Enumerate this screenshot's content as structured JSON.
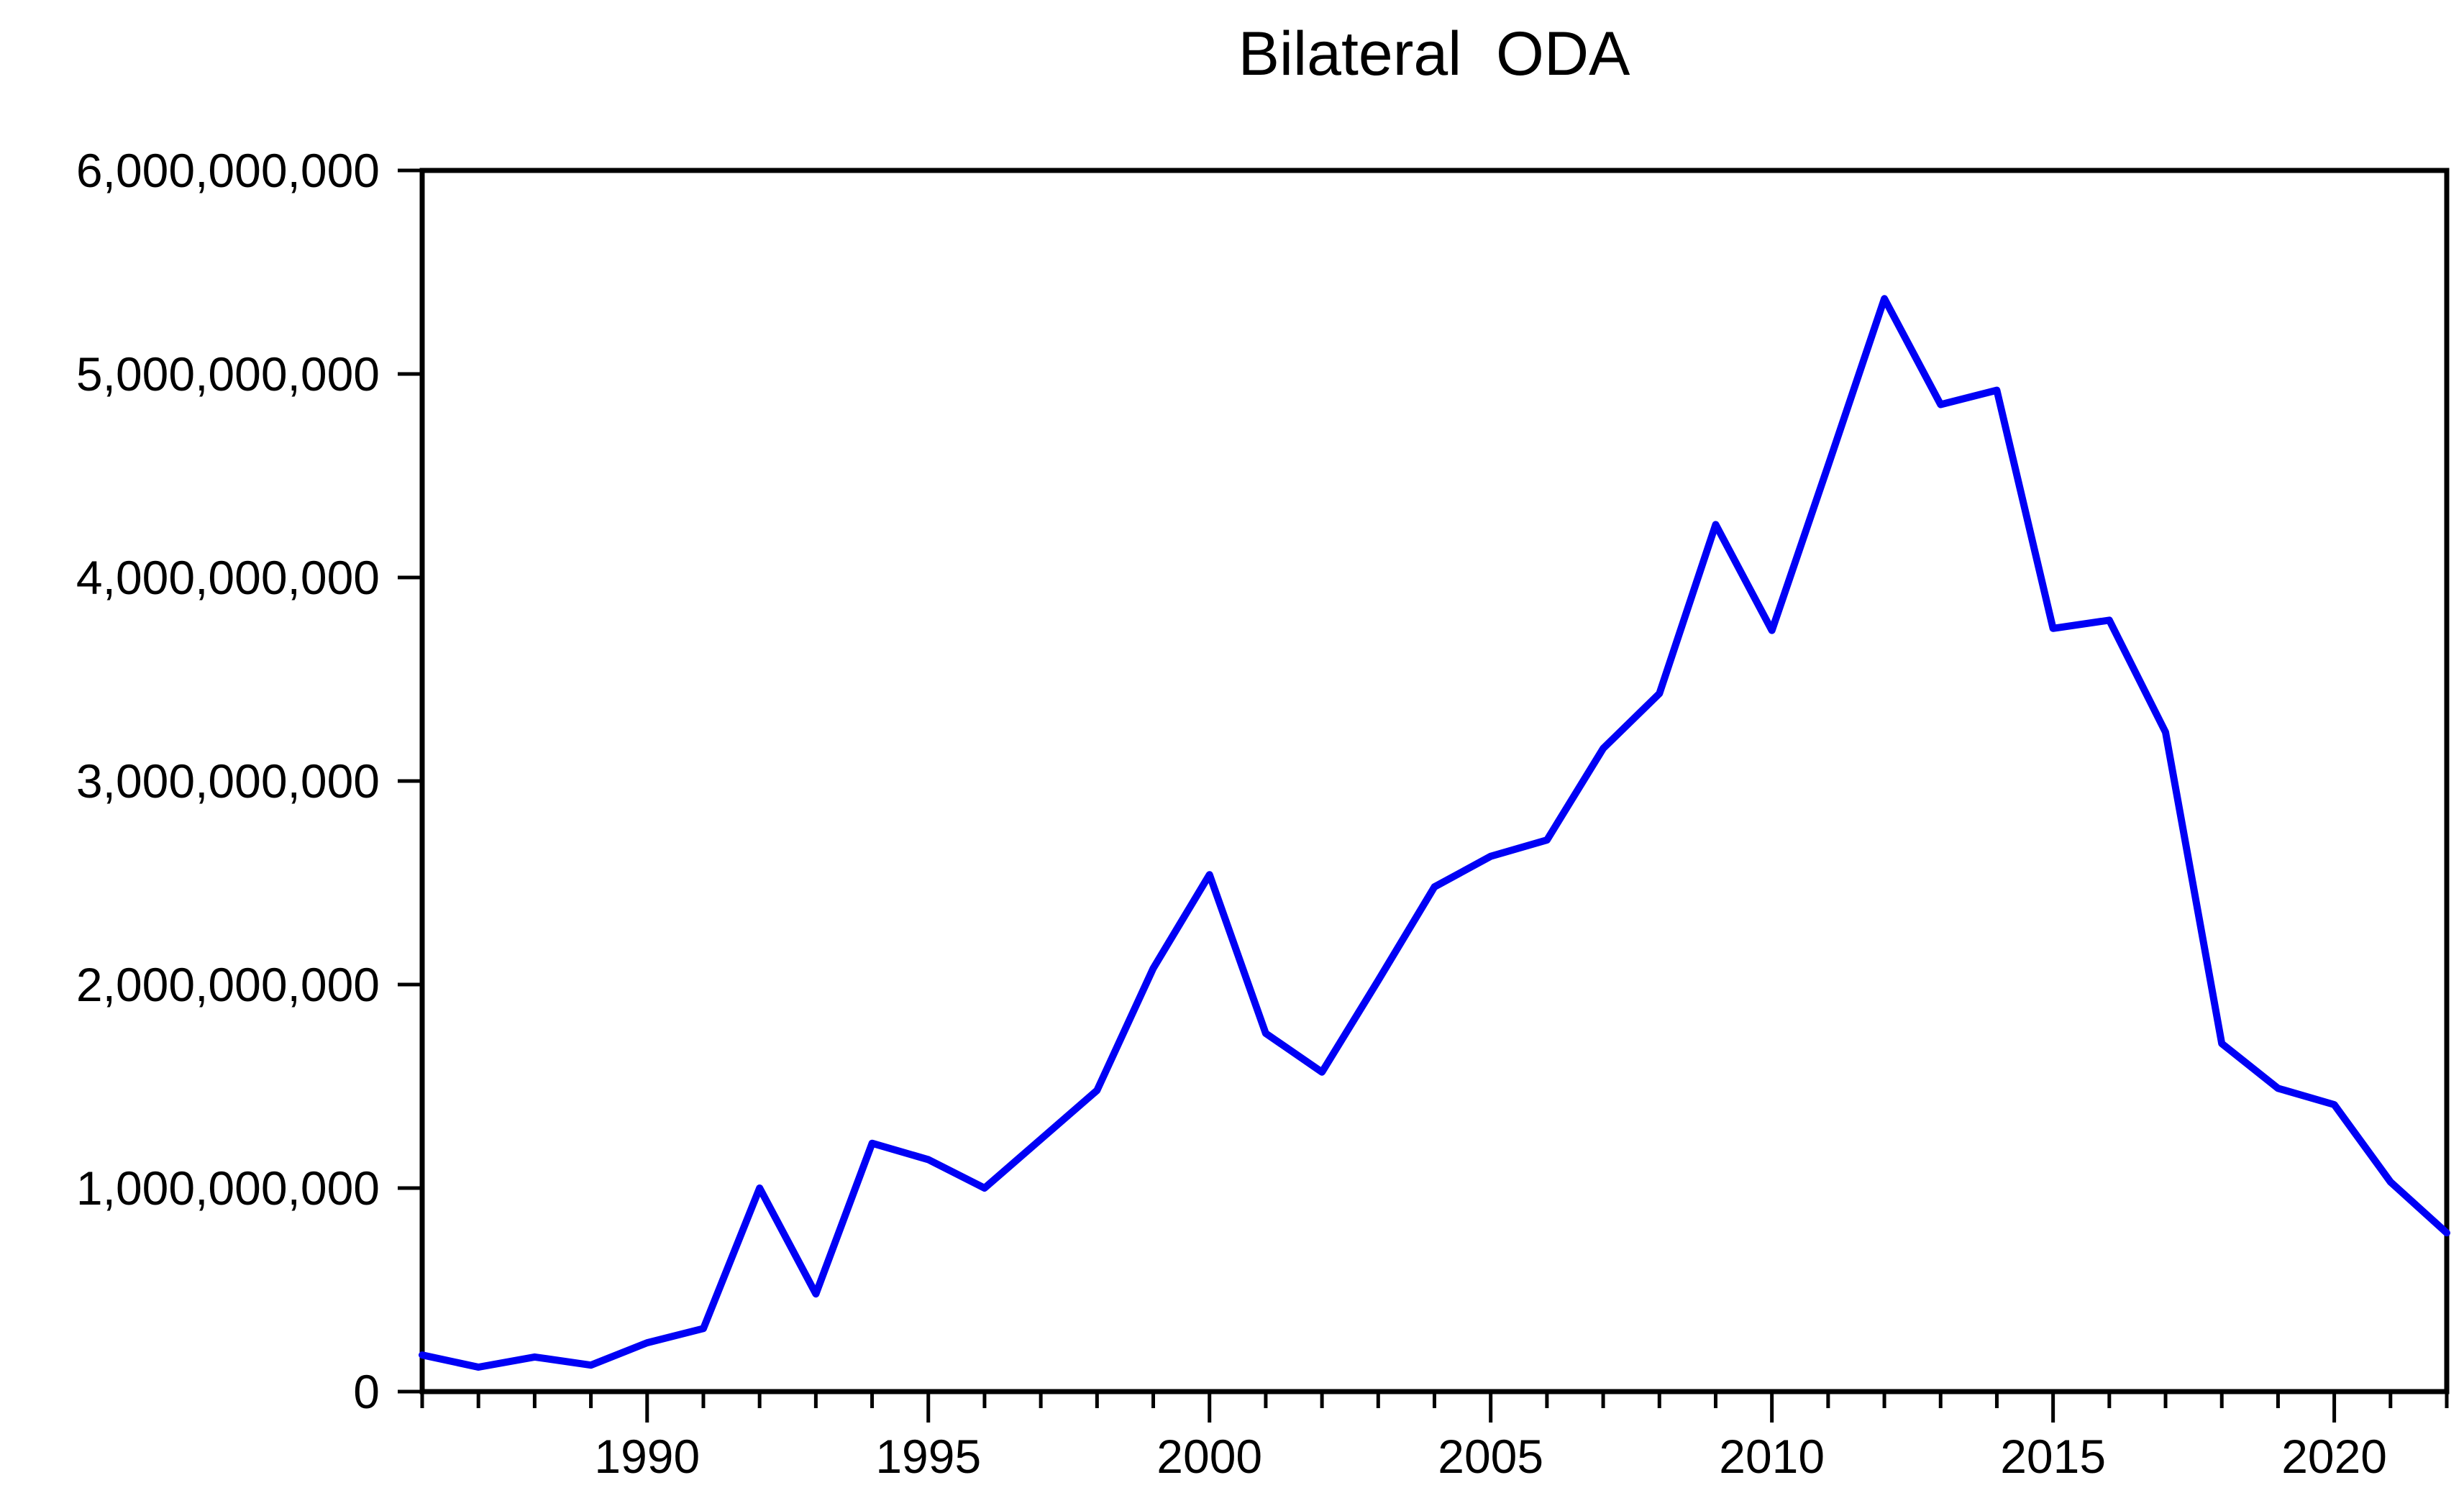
{
  "title": "Bilateral  ODA",
  "colors": {
    "line": "#0000f5",
    "axis": "#000000",
    "background": "#ffffff"
  },
  "chart_data": {
    "type": "line",
    "title": "Bilateral ODA",
    "xlabel": "",
    "ylabel": "",
    "grid": false,
    "legend": "none",
    "xlim": [
      1986,
      2022
    ],
    "ylim": [
      0,
      6000000000
    ],
    "y_tick_step": 1000000000,
    "y_tick_labels": [
      "0",
      "1,000,000,000",
      "2,000,000,000",
      "3,000,000,000",
      "4,000,000,000",
      "5,000,000,000",
      "6,000,000,000"
    ],
    "x_tick_labels": [
      "1990",
      "1995",
      "2000",
      "2005",
      "2010",
      "2015",
      "2020"
    ],
    "x": [
      1986,
      1987,
      1988,
      1989,
      1990,
      1991,
      1992,
      1993,
      1994,
      1995,
      1996,
      1997,
      1998,
      1999,
      2000,
      2001,
      2002,
      2003,
      2004,
      2005,
      2006,
      2007,
      2008,
      2009,
      2010,
      2011,
      2012,
      2013,
      2014,
      2015,
      2016,
      2017,
      2018,
      2019,
      2020,
      2021,
      2022
    ],
    "values": [
      180000000,
      120000000,
      170000000,
      130000000,
      240000000,
      310000000,
      1000000000,
      480000000,
      1220000000,
      1140000000,
      1000000000,
      1240000000,
      1480000000,
      2080000000,
      2540000000,
      1760000000,
      1570000000,
      2020000000,
      2480000000,
      2630000000,
      2710000000,
      3160000000,
      3430000000,
      4260000000,
      3740000000,
      4550000000,
      5370000000,
      4850000000,
      4920000000,
      3750000000,
      3790000000,
      3240000000,
      1710000000,
      1490000000,
      1410000000,
      1030000000,
      780000000
    ]
  }
}
